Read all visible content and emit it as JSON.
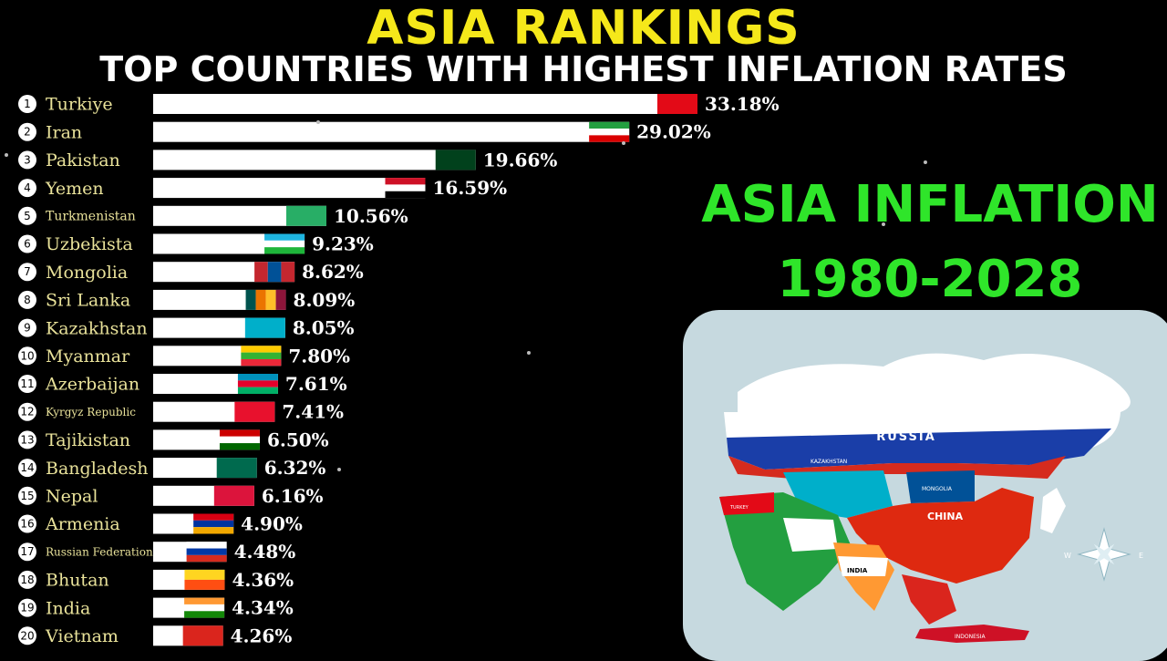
{
  "header": {
    "title": "ASIA RANKINGS",
    "subtitle": "TOP COUNTRIES WITH HIGHEST INFLATION RATES"
  },
  "side_panel": {
    "line1": "ASIA INFLATION",
    "line2": "1980-2028"
  },
  "map": {
    "labels": [
      "RUSSIA",
      "CHINA",
      "INDIA",
      "INDONESIA",
      "KAZAKHSTAN",
      "MONGOLIA",
      "TURKEY"
    ],
    "compass": [
      "W",
      "E"
    ]
  },
  "chart_data": {
    "type": "bar",
    "orientation": "horizontal",
    "title": "ASIA RANKINGS",
    "subtitle": "TOP COUNTRIES WITH HIGHEST INFLATION RATES",
    "unit": "%",
    "categories": [
      "Turkiye",
      "Iran",
      "Pakistan",
      "Yemen",
      "Turkmenistan",
      "Uzbekista",
      "Mongolia",
      "Sri Lanka",
      "Kazakhstan",
      "Myanmar",
      "Azerbaijan",
      "Kyrgyz Republic",
      "Tajikistan",
      "Bangladesh",
      "Nepal",
      "Armenia",
      "Russian Federation",
      "Bhutan",
      "India",
      "Vietnam"
    ],
    "ranks": [
      1,
      2,
      3,
      4,
      5,
      6,
      7,
      8,
      9,
      10,
      11,
      12,
      13,
      14,
      15,
      16,
      17,
      18,
      19,
      20
    ],
    "values": [
      33.18,
      29.02,
      19.66,
      16.59,
      10.56,
      9.23,
      8.62,
      8.09,
      8.05,
      7.8,
      7.61,
      7.41,
      6.5,
      6.32,
      6.16,
      4.9,
      4.48,
      4.36,
      4.34,
      4.26
    ],
    "value_labels": [
      "33.18%",
      "29.02%",
      "19.66%",
      "16.59%",
      "10.56%",
      "9.23%",
      "8.62%",
      "8.09%",
      "8.05%",
      "7.80%",
      "7.61%",
      "7.41%",
      "6.50%",
      "6.32%",
      "6.16%",
      "4.90%",
      "4.48%",
      "4.36%",
      "4.34%",
      "4.26%"
    ],
    "flags": [
      {
        "type": "h",
        "c": [
          "#e30a17"
        ]
      },
      {
        "type": "h",
        "c": [
          "#239f40",
          "#ffffff",
          "#da0000"
        ]
      },
      {
        "type": "h",
        "c": [
          "#01411c"
        ]
      },
      {
        "type": "h",
        "c": [
          "#ce1126",
          "#ffffff",
          "#000000"
        ]
      },
      {
        "type": "h",
        "c": [
          "#28ae66"
        ]
      },
      {
        "type": "h",
        "c": [
          "#1eb5e0",
          "#ffffff",
          "#1eb53a"
        ]
      },
      {
        "type": "v",
        "c": [
          "#c4272f",
          "#015197",
          "#c4272f"
        ]
      },
      {
        "type": "v",
        "c": [
          "#00534e",
          "#eb7400",
          "#ffbe29",
          "#8d153a"
        ]
      },
      {
        "type": "h",
        "c": [
          "#00afca"
        ]
      },
      {
        "type": "h",
        "c": [
          "#fecb00",
          "#34b233",
          "#ea2839"
        ]
      },
      {
        "type": "h",
        "c": [
          "#0092bc",
          "#e4002b",
          "#00af66"
        ]
      },
      {
        "type": "h",
        "c": [
          "#e8112d"
        ]
      },
      {
        "type": "h",
        "c": [
          "#cc0000",
          "#ffffff",
          "#006600"
        ]
      },
      {
        "type": "h",
        "c": [
          "#006a4e"
        ]
      },
      {
        "type": "h",
        "c": [
          "#dc143c"
        ]
      },
      {
        "type": "h",
        "c": [
          "#d90012",
          "#0033a0",
          "#f2a800"
        ]
      },
      {
        "type": "h",
        "c": [
          "#ffffff",
          "#0039a6",
          "#d52b1e"
        ]
      },
      {
        "type": "h",
        "c": [
          "#ffd520",
          "#ff4e12"
        ]
      },
      {
        "type": "h",
        "c": [
          "#ff9933",
          "#ffffff",
          "#138808"
        ]
      },
      {
        "type": "h",
        "c": [
          "#da251d"
        ]
      }
    ],
    "bar_color": "#ffffff",
    "label_color": "#e9e29a",
    "title_color": "#f5e81a",
    "side_text_color": "#2fe52a"
  }
}
